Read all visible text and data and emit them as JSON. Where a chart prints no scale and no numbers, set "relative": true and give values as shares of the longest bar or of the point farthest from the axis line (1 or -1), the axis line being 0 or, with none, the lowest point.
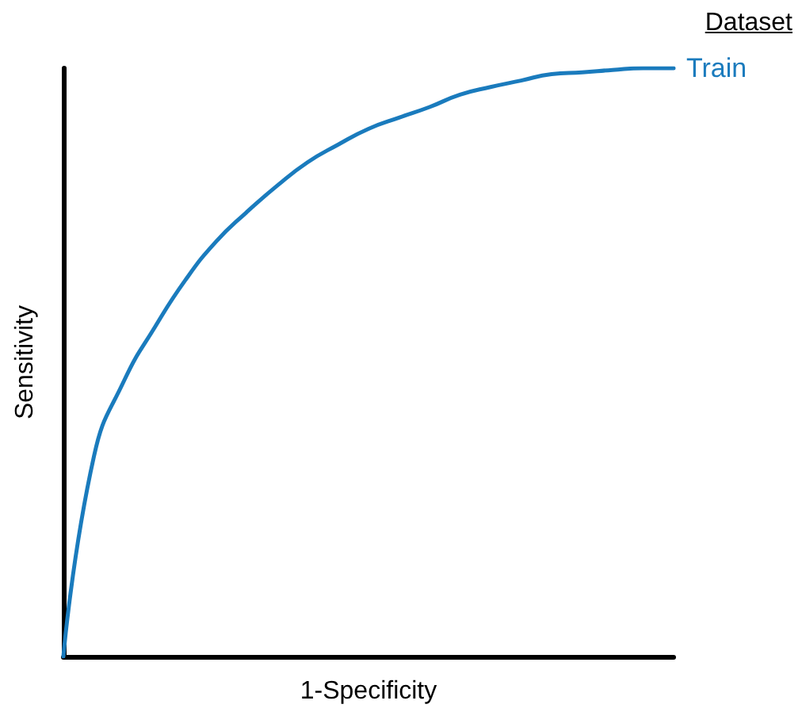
{
  "chart_data": {
    "type": "line",
    "xlabel": "1-Specificity",
    "ylabel": "Sensitivity",
    "legend_title": "Dataset",
    "relative": true,
    "tick_labels": false,
    "grid": false,
    "legend": "top right",
    "marker": "none",
    "line_style": "solid",
    "categories": [
      null,
      null,
      null,
      null,
      null,
      null,
      null,
      null,
      null,
      null,
      null,
      null,
      null,
      null,
      null,
      null,
      null,
      null,
      null,
      null,
      null
    ],
    "series": [
      {
        "name": "Train",
        "color": "#1a7bbd",
        "values": [
          0,
          0.34,
          0.47,
          0.56,
          0.64,
          0.705,
          0.755,
          0.8,
          0.84,
          0.87,
          0.897,
          0.916,
          0.934,
          0.955,
          0.968,
          0.979,
          0.99,
          0.993,
          0.997,
          1,
          1
        ]
      }
    ]
  }
}
